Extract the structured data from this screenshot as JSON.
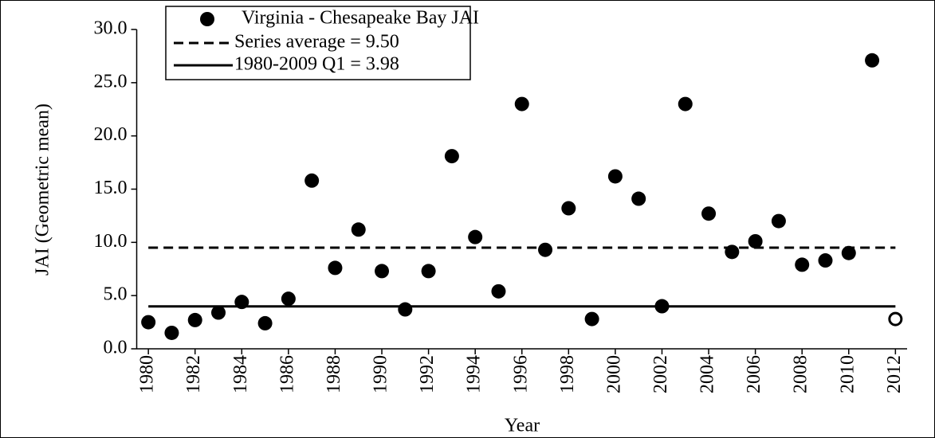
{
  "chart_data": {
    "type": "scatter",
    "x_label": "Year",
    "y_label": "JAI (Geometric mean)",
    "x": [
      1980,
      1981,
      1982,
      1983,
      1984,
      1985,
      1986,
      1987,
      1988,
      1989,
      1990,
      1991,
      1992,
      1993,
      1994,
      1995,
      1996,
      1997,
      1998,
      1999,
      2000,
      2001,
      2002,
      2003,
      2004,
      2005,
      2006,
      2007,
      2008,
      2009,
      2010,
      2011,
      2012
    ],
    "series": [
      {
        "name": "Virginia - Chesapeake Bay JAI",
        "color": "#000000",
        "values": [
          2.5,
          1.5,
          2.7,
          3.4,
          4.4,
          2.4,
          4.7,
          15.8,
          7.6,
          11.2,
          7.3,
          3.7,
          7.3,
          18.1,
          10.5,
          5.4,
          23.0,
          9.3,
          13.2,
          2.8,
          16.2,
          14.1,
          4.0,
          23.0,
          12.7,
          9.1,
          10.1,
          12.0,
          7.9,
          8.3,
          9.0,
          27.1,
          2.8
        ],
        "marker_fills": [
          "#000000",
          "#000000",
          "#000000",
          "#000000",
          "#000000",
          "#000000",
          "#000000",
          "#000000",
          "#000000",
          "#000000",
          "#000000",
          "#000000",
          "#000000",
          "#000000",
          "#000000",
          "#000000",
          "#000000",
          "#000000",
          "#000000",
          "#000000",
          "#000000",
          "#000000",
          "#000000",
          "#000000",
          "#000000",
          "#000000",
          "#000000",
          "#000000",
          "#000000",
          "#000000",
          "#000000",
          "#000000",
          "#ffffff"
        ]
      }
    ],
    "reference_lines": [
      {
        "name": "Series average = 9.50",
        "value": 9.5,
        "style": "dashed",
        "color": "#000000"
      },
      {
        "name": "1980-2009 Q1 = 3.98",
        "value": 3.98,
        "style": "solid",
        "color": "#000000"
      }
    ],
    "xlim": [
      1979.5,
      2012.5
    ],
    "xticks": [
      1980,
      1982,
      1984,
      1986,
      1988,
      1990,
      1992,
      1994,
      1996,
      1998,
      2000,
      2002,
      2004,
      2006,
      2008,
      2010,
      2012
    ],
    "ylim": [
      0,
      30
    ],
    "yticks": [
      {
        "value": 0,
        "label": "0.0"
      },
      {
        "value": 5,
        "label": "5.0"
      },
      {
        "value": 10,
        "label": "10.0"
      },
      {
        "value": 15,
        "label": "15.0"
      },
      {
        "value": 20,
        "label": "20.0"
      },
      {
        "value": 25,
        "label": "25.0"
      },
      {
        "value": 30,
        "label": "30.0"
      }
    ],
    "grid": false,
    "legend": "top-left"
  }
}
